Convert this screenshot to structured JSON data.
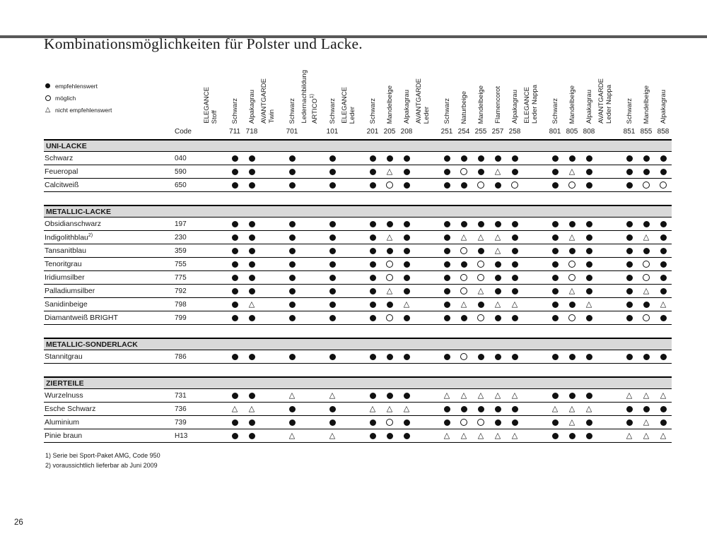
{
  "page": {
    "title": "Kombinationsmöglichkeiten für Polster und Lacke.",
    "page_number": "26",
    "top_bar_color": "#595959",
    "section_bar_color": "#d9d9d9",
    "symbol_color": "#111111"
  },
  "legend": {
    "items": [
      {
        "symbol": "filled",
        "label": "empfehlenswert"
      },
      {
        "symbol": "open",
        "label": "möglich"
      },
      {
        "symbol": "triangle",
        "label": "nicht empfehlenswert"
      }
    ]
  },
  "table": {
    "code_label": "Code",
    "symbol_map": {
      "b": "filled-dot (empfehlenswert)",
      "o": "open-circle (möglich)",
      "t": "triangle (nicht empfehlenswert)"
    },
    "groups": [
      {
        "line1": "ELEGANCE",
        "line2": "Stoff",
        "cols": [
          {
            "name": "Schwarz",
            "code": "711"
          },
          {
            "name": "Alpakagrau",
            "code": "718"
          }
        ]
      },
      {
        "line1": "AVANTGARDE",
        "line2": "Twin",
        "cols": [
          {
            "name": "Schwarz",
            "code": "701"
          }
        ]
      },
      {
        "line1": "Ledernachbildung",
        "line2": "ARTICO",
        "sup": "1)",
        "cols": [
          {
            "name": "Schwarz",
            "code": "101"
          }
        ]
      },
      {
        "line1": "ELEGANCE",
        "line2": "Leder",
        "cols": [
          {
            "name": "Schwarz",
            "code": "201"
          },
          {
            "name": "Mandelbeige",
            "code": "205"
          },
          {
            "name": "Alpakagrau",
            "code": "208"
          }
        ]
      },
      {
        "line1": "AVANTGARDE",
        "line2": "Leder",
        "cols": [
          {
            "name": "Schwarz",
            "code": "251"
          },
          {
            "name": "Naturbeige",
            "code": "254"
          },
          {
            "name": "Mandelbeige",
            "code": "255"
          },
          {
            "name": "Flamencorot",
            "code": "257"
          },
          {
            "name": "Alpakagrau",
            "code": "258"
          }
        ]
      },
      {
        "line1": "ELEGANCE",
        "line2": "Leder Nappa",
        "cols": [
          {
            "name": "Schwarz",
            "code": "801"
          },
          {
            "name": "Mandelbeige",
            "code": "805"
          },
          {
            "name": "Alpakagrau",
            "code": "808"
          }
        ]
      },
      {
        "line1": "AVANTGARDE",
        "line2": "Leder Nappa",
        "cols": [
          {
            "name": "Schwarz",
            "code": "851"
          },
          {
            "name": "Mandelbeige",
            "code": "855"
          },
          {
            "name": "Alpakagrau",
            "code": "858"
          }
        ]
      }
    ],
    "sections": [
      {
        "title": "UNI-LACKE",
        "rows": [
          {
            "name": "Schwarz",
            "code": "040",
            "cells": [
              "b",
              "b",
              "b",
              "b",
              "b",
              "b",
              "b",
              "b",
              "b",
              "b",
              "b",
              "b",
              "b",
              "b",
              "b",
              "b",
              "b",
              "b"
            ]
          },
          {
            "name": "Feueropal",
            "code": "590",
            "cells": [
              "b",
              "b",
              "b",
              "b",
              "b",
              "t",
              "b",
              "b",
              "o",
              "b",
              "t",
              "b",
              "b",
              "t",
              "b",
              "b",
              "b",
              "b"
            ]
          },
          {
            "name": "Calcitweiß",
            "code": "650",
            "cells": [
              "b",
              "b",
              "b",
              "b",
              "b",
              "o",
              "b",
              "b",
              "b",
              "o",
              "b",
              "o",
              "b",
              "o",
              "b",
              "b",
              "o",
              "o"
            ]
          }
        ]
      },
      {
        "title": "METALLIC-LACKE",
        "rows": [
          {
            "name": "Obsidianschwarz",
            "code": "197",
            "cells": [
              "b",
              "b",
              "b",
              "b",
              "b",
              "b",
              "b",
              "b",
              "b",
              "b",
              "b",
              "b",
              "b",
              "b",
              "b",
              "b",
              "b",
              "b"
            ]
          },
          {
            "name": "Indigolithblau",
            "sup": "2)",
            "code": "230",
            "cells": [
              "b",
              "b",
              "b",
              "b",
              "b",
              "t",
              "b",
              "b",
              "t",
              "t",
              "t",
              "b",
              "b",
              "t",
              "b",
              "b",
              "t",
              "b"
            ]
          },
          {
            "name": "Tansanitblau",
            "code": "359",
            "cells": [
              "b",
              "b",
              "b",
              "b",
              "b",
              "b",
              "b",
              "b",
              "o",
              "b",
              "t",
              "b",
              "b",
              "b",
              "b",
              "b",
              "b",
              "b"
            ]
          },
          {
            "name": "Tenoritgrau",
            "code": "755",
            "cells": [
              "b",
              "b",
              "b",
              "b",
              "b",
              "o",
              "b",
              "b",
              "b",
              "o",
              "b",
              "b",
              "b",
              "o",
              "b",
              "b",
              "o",
              "b"
            ]
          },
          {
            "name": "Iridiumsilber",
            "code": "775",
            "cells": [
              "b",
              "b",
              "b",
              "b",
              "b",
              "o",
              "b",
              "b",
              "o",
              "o",
              "b",
              "b",
              "b",
              "o",
              "b",
              "b",
              "o",
              "b"
            ]
          },
          {
            "name": "Palladiumsilber",
            "code": "792",
            "cells": [
              "b",
              "b",
              "b",
              "b",
              "b",
              "t",
              "b",
              "b",
              "o",
              "t",
              "b",
              "b",
              "b",
              "t",
              "b",
              "b",
              "t",
              "b"
            ]
          },
          {
            "name": "Sanidinbeige",
            "code": "798",
            "cells": [
              "b",
              "t",
              "b",
              "b",
              "b",
              "b",
              "t",
              "b",
              "t",
              "b",
              "t",
              "t",
              "b",
              "b",
              "t",
              "b",
              "b",
              "t"
            ]
          },
          {
            "name": "Diamantweiß BRIGHT",
            "code": "799",
            "cells": [
              "b",
              "b",
              "b",
              "b",
              "b",
              "o",
              "b",
              "b",
              "b",
              "o",
              "b",
              "b",
              "b",
              "o",
              "b",
              "b",
              "o",
              "b"
            ]
          }
        ]
      },
      {
        "title": "METALLIC-SONDERLACK",
        "rows": [
          {
            "name": "Stannitgrau",
            "code": "786",
            "cells": [
              "b",
              "b",
              "b",
              "b",
              "b",
              "b",
              "b",
              "b",
              "o",
              "b",
              "b",
              "b",
              "b",
              "b",
              "b",
              "b",
              "b",
              "b"
            ]
          }
        ]
      },
      {
        "title": "ZIERTEILE",
        "rows": [
          {
            "name": "Wurzelnuss",
            "code": "731",
            "cells": [
              "b",
              "b",
              "t",
              "t",
              "b",
              "b",
              "b",
              "t",
              "t",
              "t",
              "t",
              "t",
              "b",
              "b",
              "b",
              "t",
              "t",
              "t"
            ]
          },
          {
            "name": "Esche Schwarz",
            "code": "736",
            "cells": [
              "t",
              "t",
              "b",
              "b",
              "t",
              "t",
              "t",
              "b",
              "b",
              "b",
              "b",
              "b",
              "t",
              "t",
              "t",
              "b",
              "b",
              "b"
            ]
          },
          {
            "name": "Aluminium",
            "code": "739",
            "cells": [
              "b",
              "b",
              "b",
              "b",
              "b",
              "o",
              "b",
              "b",
              "o",
              "o",
              "b",
              "b",
              "b",
              "t",
              "b",
              "b",
              "t",
              "b"
            ]
          },
          {
            "name": "Pinie braun",
            "code": "H13",
            "cells": [
              "b",
              "b",
              "t",
              "t",
              "b",
              "b",
              "b",
              "t",
              "t",
              "t",
              "t",
              "t",
              "b",
              "b",
              "b",
              "t",
              "t",
              "t"
            ]
          }
        ]
      }
    ]
  },
  "footnotes": [
    "1) Serie bei Sport-Paket AMG, Code 950",
    "2) voraussichtlich lieferbar ab Juni 2009"
  ]
}
